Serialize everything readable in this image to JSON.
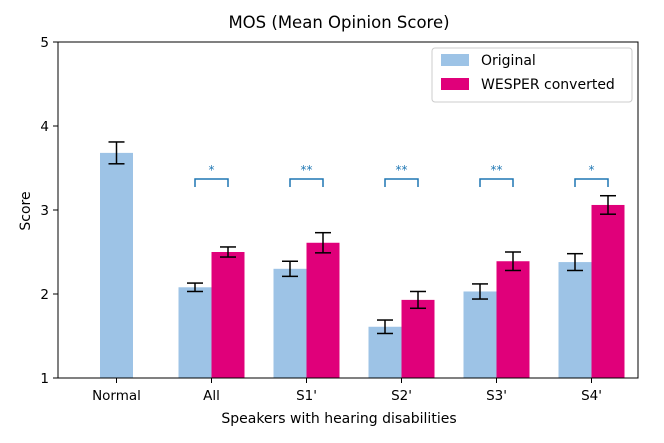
{
  "chart_data": {
    "type": "bar",
    "title": "MOS (Mean Opinion Score)",
    "xlabel": "Speakers with hearing disabilities",
    "ylabel": "Score",
    "ylim": [
      1,
      5
    ],
    "yticks": [
      "1",
      "2",
      "3",
      "4",
      "5"
    ],
    "categories": [
      "Normal",
      "All",
      "S1'",
      "S2'",
      "S3'",
      "S4'"
    ],
    "series": [
      {
        "name": "Original",
        "color": "#9dc3e6",
        "values": [
          3.68,
          2.08,
          2.3,
          1.61,
          2.03,
          2.38
        ],
        "errors": [
          0.13,
          0.05,
          0.09,
          0.08,
          0.09,
          0.1
        ]
      },
      {
        "name": "WESPER converted",
        "color": "#e0007a",
        "values": [
          null,
          2.5,
          2.61,
          1.93,
          2.39,
          3.06
        ],
        "errors": [
          null,
          0.06,
          0.12,
          0.1,
          0.11,
          0.11
        ]
      }
    ],
    "significance": [
      {
        "category": "All",
        "label": "*"
      },
      {
        "category": "S1'",
        "label": "**"
      },
      {
        "category": "S2'",
        "label": "**"
      },
      {
        "category": "S3'",
        "label": "**"
      },
      {
        "category": "S4'",
        "label": "*"
      }
    ],
    "legend_position": "top-right",
    "bracket_color": "#1f77b4"
  }
}
